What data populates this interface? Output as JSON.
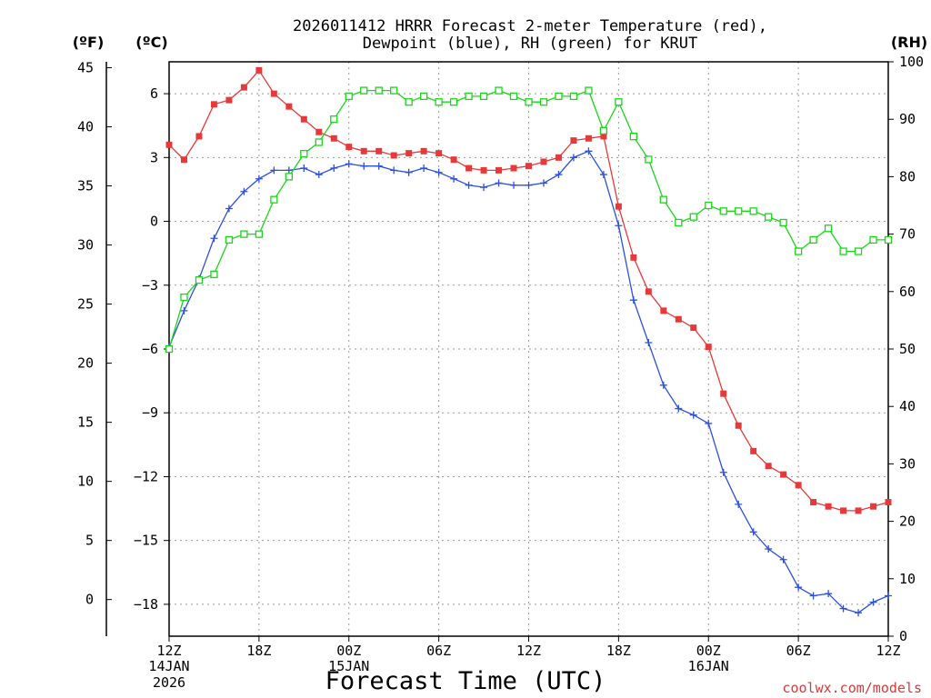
{
  "title_line1": "2026011412 HRRR Forecast 2-meter Temperature (red),",
  "title_line2": "Dewpoint (blue), RH (green) for KRUT",
  "units": {
    "f": "(ºF)",
    "c": "(ºC)",
    "rh": "(RH)"
  },
  "xlabel": "Forecast Time (UTC)",
  "credit": "coolwx.com/models",
  "colors": {
    "temp": "#e8393a",
    "dew": "#2b4fe0",
    "rh": "#19d619",
    "grid": "#9a9a9a",
    "credit": "#d63a3a"
  },
  "chart_data": {
    "type": "line",
    "x_hours": [
      0,
      1,
      2,
      3,
      4,
      5,
      6,
      7,
      8,
      9,
      10,
      11,
      12,
      13,
      14,
      15,
      16,
      17,
      18,
      19,
      20,
      21,
      22,
      23,
      24,
      25,
      26,
      27,
      28,
      29,
      30,
      31,
      32,
      33,
      34,
      35,
      36,
      37,
      38,
      39,
      40,
      41,
      42,
      43,
      44,
      45,
      46,
      47,
      48
    ],
    "c_ticks": [
      6,
      3,
      0,
      -3,
      -6,
      -9,
      -12,
      -15,
      -18
    ],
    "f_ticks": [
      45,
      40,
      35,
      30,
      25,
      20,
      15,
      10,
      5,
      0
    ],
    "rh_ticks": [
      100,
      90,
      80,
      70,
      60,
      50,
      40,
      30,
      20,
      10,
      0
    ],
    "c_range": [
      -19.5,
      7.5
    ],
    "rh_range": [
      0,
      100
    ],
    "x_ticks": [
      {
        "h": 0,
        "label": "12Z",
        "l2": "14JAN",
        "l3": "2026"
      },
      {
        "h": 6,
        "label": "18Z",
        "l2": "",
        "l3": ""
      },
      {
        "h": 12,
        "label": "00Z",
        "l2": "15JAN",
        "l3": ""
      },
      {
        "h": 18,
        "label": "06Z",
        "l2": "",
        "l3": ""
      },
      {
        "h": 24,
        "label": "12Z",
        "l2": "",
        "l3": ""
      },
      {
        "h": 30,
        "label": "18Z",
        "l2": "",
        "l3": ""
      },
      {
        "h": 36,
        "label": "00Z",
        "l2": "16JAN",
        "l3": ""
      },
      {
        "h": 42,
        "label": "06Z",
        "l2": "",
        "l3": ""
      },
      {
        "h": 48,
        "label": "12Z",
        "l2": "",
        "l3": ""
      }
    ],
    "series": [
      {
        "key": "temp",
        "values": [
          3.6,
          2.9,
          4.0,
          5.5,
          5.7,
          6.3,
          7.1,
          6.0,
          5.4,
          4.8,
          4.2,
          3.9,
          3.5,
          3.3,
          3.3,
          3.1,
          3.2,
          3.3,
          3.2,
          2.9,
          2.5,
          2.4,
          2.4,
          2.5,
          2.6,
          2.8,
          3.0,
          3.8,
          3.9,
          4.0,
          0.7,
          -1.7,
          -3.3,
          -4.2,
          -4.6,
          -5.0,
          -5.9,
          -8.1,
          -9.6,
          -10.8,
          -11.5,
          -11.9,
          -12.4,
          -13.2,
          -13.4,
          -13.6,
          -13.6,
          -13.4,
          -13.2
        ]
      },
      {
        "key": "dew",
        "values": [
          -5.9,
          -4.2,
          -2.7,
          -0.8,
          0.6,
          1.4,
          2.0,
          2.4,
          2.4,
          2.5,
          2.2,
          2.5,
          2.7,
          2.6,
          2.6,
          2.4,
          2.3,
          2.5,
          2.3,
          2.0,
          1.7,
          1.6,
          1.8,
          1.7,
          1.7,
          1.8,
          2.2,
          3.0,
          3.3,
          2.2,
          -0.2,
          -3.7,
          -5.7,
          -7.7,
          -8.8,
          -9.1,
          -9.5,
          -11.8,
          -13.3,
          -14.6,
          -15.4,
          -15.9,
          -17.2,
          -17.6,
          -17.5,
          -18.2,
          -18.4,
          -17.9,
          -17.6
        ]
      },
      {
        "key": "rh",
        "values": [
          50,
          59,
          62,
          63,
          69,
          70,
          70,
          76,
          80,
          84,
          86,
          90,
          94,
          95,
          95,
          95,
          93,
          94,
          93,
          93,
          94,
          94,
          95,
          94,
          93,
          93,
          94,
          94,
          95,
          88,
          93,
          87,
          83,
          76,
          72,
          73,
          75,
          74,
          74,
          74,
          73,
          72,
          67,
          69,
          71,
          67,
          67,
          69,
          69
        ]
      }
    ]
  }
}
